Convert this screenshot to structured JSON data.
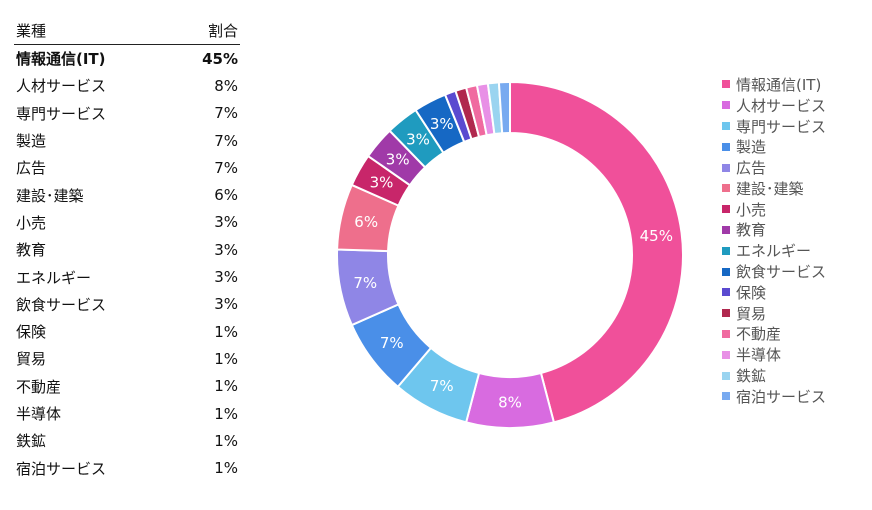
{
  "table": {
    "header": {
      "industry": "業種",
      "share": "割合"
    },
    "rows": [
      {
        "industry": "情報通信(IT)",
        "share": "45%",
        "bold": true
      },
      {
        "industry": "人材サービス",
        "share": "8%"
      },
      {
        "industry": "専門サービス",
        "share": "7%"
      },
      {
        "industry": "製造",
        "share": "7%"
      },
      {
        "industry": "広告",
        "share": "7%"
      },
      {
        "industry": "建設･建築",
        "share": "6%"
      },
      {
        "industry": "小売",
        "share": "3%"
      },
      {
        "industry": "教育",
        "share": "3%"
      },
      {
        "industry": "エネルギー",
        "share": "3%"
      },
      {
        "industry": "飲食サービス",
        "share": "3%"
      },
      {
        "industry": "保険",
        "share": "1%"
      },
      {
        "industry": "貿易",
        "share": "1%"
      },
      {
        "industry": "不動産",
        "share": "1%"
      },
      {
        "industry": "半導体",
        "share": "1%"
      },
      {
        "industry": "鉄鉱",
        "share": "1%"
      },
      {
        "industry": "宿泊サービス",
        "share": "1%"
      }
    ]
  },
  "chart_data": {
    "type": "pie",
    "style": "donut",
    "categories": [
      "情報通信(IT)",
      "人材サービス",
      "専門サービス",
      "製造",
      "広告",
      "建設･建築",
      "小売",
      "教育",
      "エネルギー",
      "飲食サービス",
      "保険",
      "貿易",
      "不動産",
      "半導体",
      "鉄鉱",
      "宿泊サービス"
    ],
    "values": [
      45,
      8,
      7,
      7,
      7,
      6,
      3,
      3,
      3,
      3,
      1,
      1,
      1,
      1,
      1,
      1
    ],
    "labels": [
      "45%",
      "8%",
      "7%",
      "7%",
      "7%",
      "6%",
      "3%",
      "3%",
      "3%",
      "3%",
      "",
      "",
      "",
      "",
      "",
      ""
    ],
    "colors": [
      "#f0509a",
      "#d86be0",
      "#6ec6ee",
      "#4a8fe8",
      "#8f86e6",
      "#ee6f8c",
      "#c8266a",
      "#a03aa8",
      "#1f9bbf",
      "#1668c4",
      "#5a4ad0",
      "#b0284e",
      "#f06aa0",
      "#e890e6",
      "#9ad4f0",
      "#78aaf0"
    ],
    "legend": "right"
  }
}
